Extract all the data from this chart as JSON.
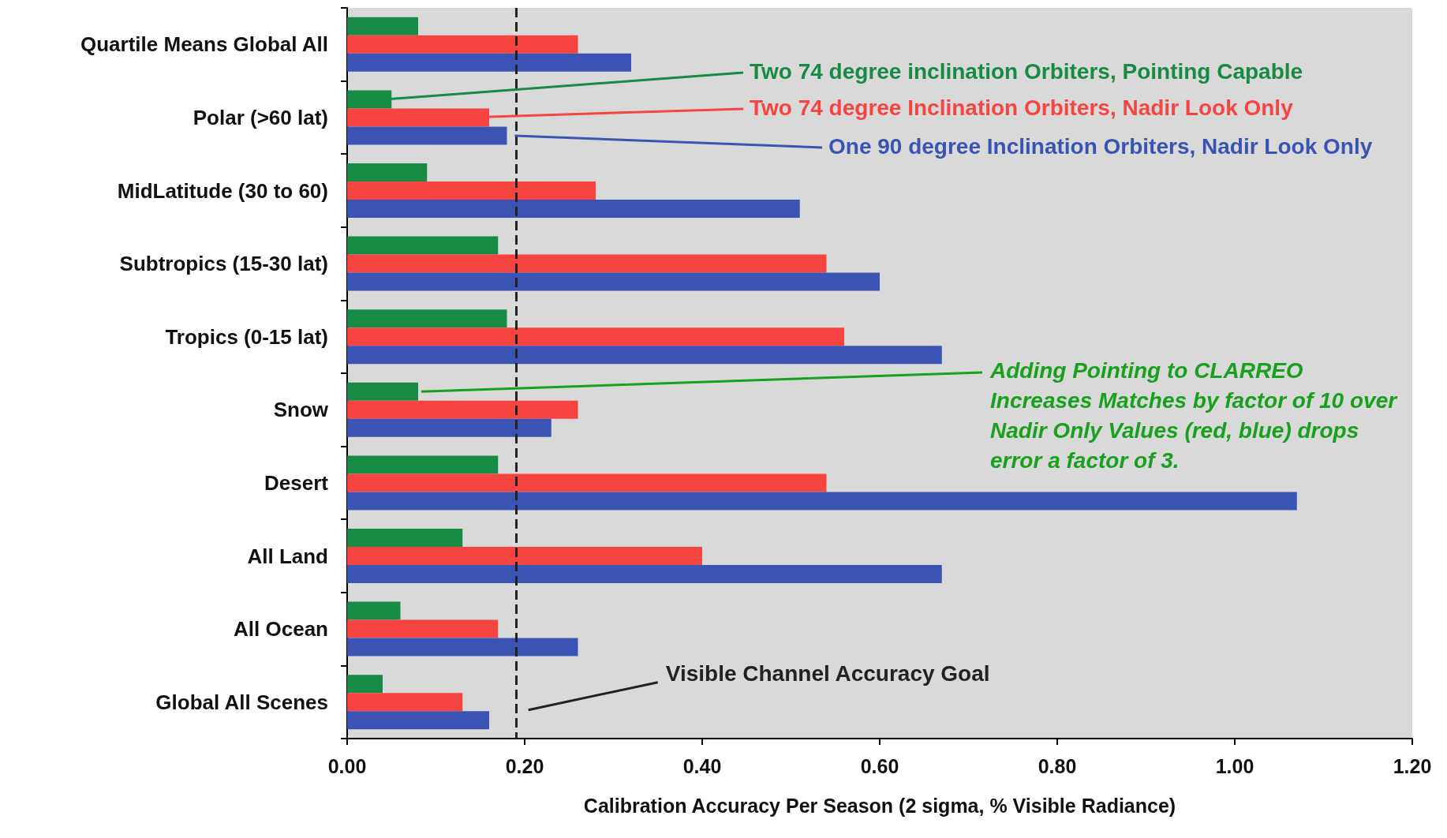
{
  "chart_data": {
    "type": "bar",
    "orientation": "horizontal",
    "xlabel": "Calibration Accuracy Per Season (2 sigma, % Visible Radiance)",
    "categories": [
      "Quartile Means Global All",
      "Polar (>60 lat)",
      "MidLatitude (30 to 60)",
      "Subtropics (15-30 lat)",
      "Tropics (0-15 lat)",
      "Snow",
      "Desert",
      "All Land",
      "All Ocean",
      "Global All Scenes"
    ],
    "series": [
      {
        "name": "Two 74 degree inclination Orbiters, Pointing Capable",
        "color": "#178a45",
        "values": [
          0.08,
          0.05,
          0.09,
          0.17,
          0.18,
          0.08,
          0.17,
          0.13,
          0.06,
          0.04
        ]
      },
      {
        "name": "Two 74 degree Inclination Orbiters, Nadir Look Only",
        "color": "#f64441",
        "values": [
          0.26,
          0.16,
          0.28,
          0.54,
          0.56,
          0.26,
          0.54,
          0.4,
          0.17,
          0.13
        ]
      },
      {
        "name": "One 90 degree Inclination Orbiters, Nadir Look Only",
        "color": "#3b54b3",
        "values": [
          0.32,
          0.18,
          0.51,
          0.6,
          0.67,
          0.23,
          1.07,
          0.67,
          0.26,
          0.16
        ]
      }
    ],
    "xlim": [
      0,
      1.2
    ],
    "xticks": [
      {
        "value": 0,
        "label": "0.00"
      },
      {
        "value": 0.2,
        "label": "0.20"
      },
      {
        "value": 0.4,
        "label": "0.40"
      },
      {
        "value": 0.6,
        "label": "0.60"
      },
      {
        "value": 0.8,
        "label": "0.80"
      },
      {
        "value": 1.0,
        "label": "1.00"
      },
      {
        "value": 1.2,
        "label": "1.20"
      }
    ],
    "grid": false,
    "legend": false,
    "ref_lines": [
      {
        "axis": "x",
        "value": 0.19,
        "label": "Visible Channel Accuracy Goal",
        "color": "#222222",
        "line_style": "dashed"
      }
    ],
    "annotations": [
      "Adding Pointing to CLARREO Increases Matches by factor of 10 over Nadir Only Values (red, blue) drops error a factor of 3."
    ]
  }
}
